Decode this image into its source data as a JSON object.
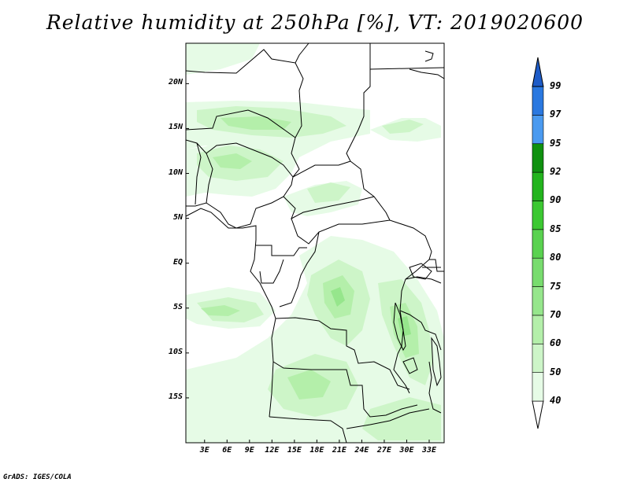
{
  "title": "Relative humidity at 250hPa [%], VT: 2019020600",
  "credit": "GrADS: IGES/COLA",
  "map": {
    "lon_labels": [
      "3E",
      "6E",
      "9E",
      "12E",
      "15E",
      "18E",
      "21E",
      "24E",
      "27E",
      "30E",
      "33E"
    ],
    "lat_labels": [
      "20N",
      "15N",
      "10N",
      "5N",
      "EQ",
      "5S",
      "10S",
      "15S"
    ],
    "lon_range": [
      0.5,
      35.0
    ],
    "lat_range": [
      -20.0,
      24.5
    ]
  },
  "colorbar": {
    "levels": [
      "40",
      "50",
      "60",
      "70",
      "75",
      "80",
      "85",
      "90",
      "92",
      "95",
      "97",
      "99"
    ],
    "colors": [
      "#ffffff",
      "#e6fbe6",
      "#cdf5c8",
      "#b4efaa",
      "#96e68c",
      "#78dc6e",
      "#5ad250",
      "#3cc832",
      "#23b41e",
      "#0f9110",
      "#4a9af0",
      "#2a78e0",
      "#1e5cc8"
    ]
  }
}
